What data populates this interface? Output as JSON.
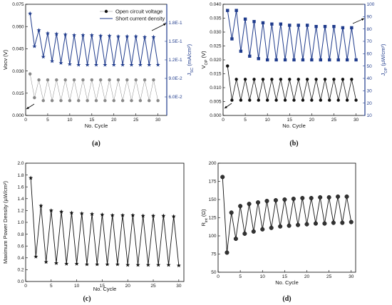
{
  "chart_data": [
    {
      "panel": "a",
      "type": "line",
      "caption": "(a)",
      "xlabel": "No. Cycle",
      "ylabel_left": "Vocv (V)",
      "ylabel_right_main": "J",
      "ylabel_right_sub": "SC",
      "ylabel_right_unit": " (mA/cm²)",
      "xlim": [
        0,
        32
      ],
      "ylim_left": [
        0,
        0.075
      ],
      "ylim_right": [
        0.03,
        0.21
      ],
      "xticks": [
        0,
        5,
        10,
        15,
        20,
        25,
        30
      ],
      "yticks_left": [
        0,
        0.015,
        0.03,
        0.045,
        0.06,
        0.075
      ],
      "yticks_left_labels": [
        "0.000",
        "0.015",
        "0.030",
        "0.045",
        "0.060",
        "0.075"
      ],
      "yticks_right": [
        0.06,
        0.09,
        0.12,
        0.15,
        0.18
      ],
      "yticks_right_labels": [
        "6.0E-2",
        "9.0E-2",
        "1.2E-1",
        "1.5E-1",
        "1.8E-1"
      ],
      "legend": {
        "position": "top-right",
        "entries": [
          "Open circuit voltage",
          "Short current density"
        ]
      },
      "x": [
        1,
        2,
        3,
        4,
        5,
        6,
        7,
        8,
        9,
        10,
        11,
        12,
        13,
        14,
        15,
        16,
        17,
        18,
        19,
        20,
        21,
        22,
        23,
        24,
        25,
        26,
        27,
        28,
        29,
        30
      ],
      "series": [
        {
          "name": "Open circuit voltage",
          "axis": "left",
          "color": "#111111",
          "values": [
            0.028,
            0.012,
            0.024,
            0.01,
            0.024,
            0.01,
            0.024,
            0.01,
            0.024,
            0.01,
            0.024,
            0.01,
            0.024,
            0.01,
            0.024,
            0.01,
            0.024,
            0.01,
            0.024,
            0.01,
            0.024,
            0.01,
            0.024,
            0.01,
            0.024,
            0.01,
            0.024,
            0.01,
            0.024,
            0.01
          ]
        },
        {
          "name": "Short current density",
          "axis": "right",
          "color": "#1f3b8c",
          "values": [
            0.195,
            0.142,
            0.168,
            0.125,
            0.163,
            0.118,
            0.162,
            0.115,
            0.161,
            0.113,
            0.16,
            0.112,
            0.16,
            0.112,
            0.16,
            0.112,
            0.159,
            0.112,
            0.159,
            0.112,
            0.158,
            0.112,
            0.158,
            0.112,
            0.158,
            0.112,
            0.157,
            0.112,
            0.157,
            0.112
          ]
        }
      ]
    },
    {
      "panel": "b",
      "type": "line",
      "caption": "(b)",
      "xlabel": "No. Cycle",
      "ylabel_left_main": "V",
      "ylabel_left_sub": "OP",
      "ylabel_left_unit": " (V)",
      "ylabel_right_main": "J",
      "ylabel_right_sub": "OP",
      "ylabel_right_unit": " (µW/cm²)",
      "xlim": [
        0,
        32
      ],
      "ylim_left": [
        0,
        0.04
      ],
      "ylim_right": [
        10,
        100
      ],
      "xticks": [
        0,
        5,
        10,
        15,
        20,
        25,
        30
      ],
      "yticks_left": [
        0,
        0.005,
        0.01,
        0.015,
        0.02,
        0.025,
        0.03,
        0.035,
        0.04
      ],
      "yticks_left_labels": [
        "0.000",
        "0.005",
        "0.010",
        "0.015",
        "0.020",
        "0.025",
        "0.030",
        "0.035",
        "0.040"
      ],
      "yticks_right": [
        10,
        20,
        30,
        40,
        50,
        60,
        70,
        80,
        90,
        100
      ],
      "x": [
        1,
        2,
        3,
        4,
        5,
        6,
        7,
        8,
        9,
        10,
        11,
        12,
        13,
        14,
        15,
        16,
        17,
        18,
        19,
        20,
        21,
        22,
        23,
        24,
        25,
        26,
        27,
        28,
        29,
        30
      ],
      "series": [
        {
          "axis": "left",
          "color": "#111111",
          "values": [
            0.0178,
            0.0055,
            0.013,
            0.0055,
            0.013,
            0.0055,
            0.013,
            0.0055,
            0.013,
            0.0055,
            0.013,
            0.0055,
            0.013,
            0.0055,
            0.013,
            0.0055,
            0.013,
            0.0055,
            0.013,
            0.0055,
            0.013,
            0.0055,
            0.013,
            0.0055,
            0.013,
            0.0055,
            0.013,
            0.0055,
            0.013,
            0.0055
          ]
        },
        {
          "axis": "right",
          "color": "#1f3b8c",
          "values": [
            95,
            72,
            95,
            62,
            88,
            58,
            86,
            56,
            85,
            55,
            84,
            55,
            84,
            55,
            83,
            55,
            83,
            55,
            83,
            55,
            82,
            55,
            82,
            55,
            82,
            55,
            81,
            55,
            81,
            55
          ]
        }
      ]
    },
    {
      "panel": "c",
      "type": "line",
      "caption": "(c)",
      "xlabel": "No. Cycle",
      "ylabel": "Maximum Power Density (µW/cm²)",
      "xlim": [
        0,
        31
      ],
      "ylim": [
        0,
        2.0
      ],
      "xticks": [
        0,
        5,
        10,
        15,
        20,
        25,
        30
      ],
      "yticks": [
        0,
        0.2,
        0.4,
        0.6,
        0.8,
        1.0,
        1.2,
        1.4,
        1.6,
        1.8,
        2.0
      ],
      "yticks_labels": [
        "0.0",
        "0.2",
        "0.4",
        "0.6",
        "0.8",
        "1.0",
        "1.2",
        "1.4",
        "1.6",
        "1.8",
        "2.0"
      ],
      "x": [
        1,
        2,
        3,
        4,
        5,
        6,
        7,
        8,
        9,
        10,
        11,
        12,
        13,
        14,
        15,
        16,
        17,
        18,
        19,
        20,
        21,
        22,
        23,
        24,
        25,
        26,
        27,
        28,
        29,
        30
      ],
      "series": [
        {
          "color": "#111111",
          "values": [
            1.75,
            0.42,
            1.28,
            0.33,
            1.2,
            0.31,
            1.18,
            0.3,
            1.16,
            0.3,
            1.15,
            0.29,
            1.14,
            0.29,
            1.13,
            0.29,
            1.12,
            0.29,
            1.12,
            0.28,
            1.12,
            0.28,
            1.11,
            0.28,
            1.11,
            0.28,
            1.11,
            0.28,
            1.1,
            0.27
          ]
        }
      ]
    },
    {
      "panel": "d",
      "type": "line",
      "caption": "(d)",
      "xlabel": "No. Cycle",
      "ylabel_main": "R",
      "ylabel_sub": "int",
      "ylabel_unit": " (Ω)",
      "xlim": [
        0,
        31
      ],
      "ylim": [
        50,
        200
      ],
      "xticks": [
        0,
        5,
        10,
        15,
        20,
        25,
        30
      ],
      "yticks": [
        50,
        75,
        100,
        125,
        150,
        175,
        200
      ],
      "x": [
        1,
        2,
        3,
        4,
        5,
        6,
        7,
        8,
        9,
        10,
        11,
        12,
        13,
        14,
        15,
        16,
        17,
        18,
        19,
        20,
        21,
        22,
        23,
        24,
        25,
        26,
        27,
        28,
        29,
        30
      ],
      "series": [
        {
          "color": "#111111",
          "values": [
            181,
            77,
            132,
            96,
            141,
            103,
            144,
            106,
            146,
            109,
            148,
            111,
            149,
            113,
            150,
            114,
            151,
            115,
            152,
            116,
            152,
            117,
            153,
            117,
            153,
            118,
            154,
            118,
            154,
            119
          ]
        }
      ]
    }
  ]
}
